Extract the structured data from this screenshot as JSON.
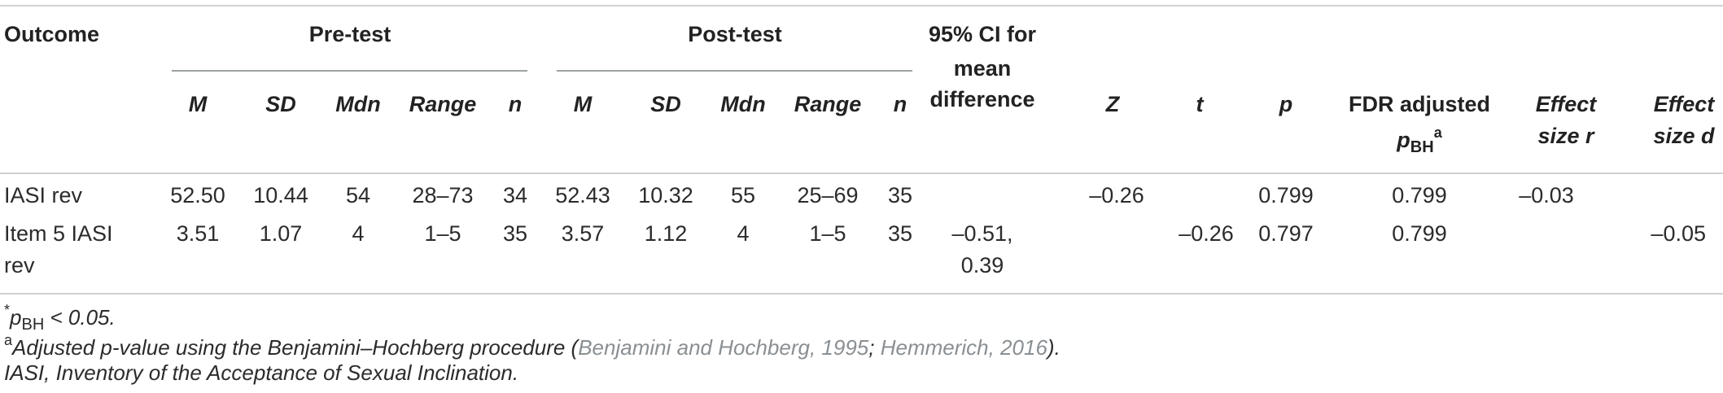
{
  "table": {
    "group_headers": {
      "outcome": "Outcome",
      "pre_test": "Pre-test",
      "post_test": "Post-test",
      "ci_line1": "95% CI for",
      "ci_line2": "mean",
      "ci_line3": "difference"
    },
    "sub_headers": {
      "pre_m": "M",
      "pre_sd": "SD",
      "pre_mdn": "Mdn",
      "pre_range": "Range",
      "pre_n": "n",
      "post_m": "M",
      "post_sd": "SD",
      "post_mdn": "Mdn",
      "post_range": "Range",
      "post_n": "n",
      "z": "Z",
      "t": "t",
      "p": "p",
      "fdr_line1": "FDR adjusted",
      "fdr_p": "p",
      "fdr_sub": "BH",
      "fdr_sup": "a",
      "effr_line1": "Effect",
      "effr_line2": "size r",
      "effd_line1": "Effect",
      "effd_line2": "size d"
    },
    "rows": [
      {
        "outcome_line1": "IASI rev",
        "outcome_line2": "",
        "pre_m": "52.50",
        "pre_sd": "10.44",
        "pre_mdn": "54",
        "pre_range": "28–73",
        "pre_n": "34",
        "post_m": "52.43",
        "post_sd": "10.32",
        "post_mdn": "55",
        "post_range": "25–69",
        "post_n": "35",
        "ci_line1": "",
        "ci_line2": "",
        "z": "–0.26",
        "t": "",
        "p": "0.799",
        "fdr": "0.799",
        "eff_r": "–0.03",
        "eff_d": ""
      },
      {
        "outcome_line1": "Item 5 IASI",
        "outcome_line2": "rev",
        "pre_m": "3.51",
        "pre_sd": "1.07",
        "pre_mdn": "4",
        "pre_range": "1–5",
        "pre_n": "35",
        "post_m": "3.57",
        "post_sd": "1.12",
        "post_mdn": "4",
        "post_range": "1–5",
        "post_n": "35",
        "ci_line1": "–0.51,",
        "ci_line2": "0.39",
        "z": "",
        "t": "–0.26",
        "p": "0.797",
        "fdr": "0.799",
        "eff_r": "",
        "eff_d": "–0.05"
      }
    ]
  },
  "footnotes": {
    "star_sup": "*",
    "star_p": "p",
    "star_sub": "BH",
    "star_rest": " < 0.05.",
    "a_sup": "a",
    "a_text": "Adjusted p-value using the Benjamini–Hochberg procedure (",
    "a_cite1": "Benjamini and Hochberg, 1995",
    "a_sep": "; ",
    "a_cite2": "Hemmerich, 2016",
    "a_end": ").",
    "abbrev": "IASI, Inventory of the Acceptance of Sexual Inclination."
  },
  "colors": {
    "rule": "#cfd2d4",
    "group_rule": "#9ea2a5",
    "citation": "#8a8f93",
    "text": "#222222"
  }
}
